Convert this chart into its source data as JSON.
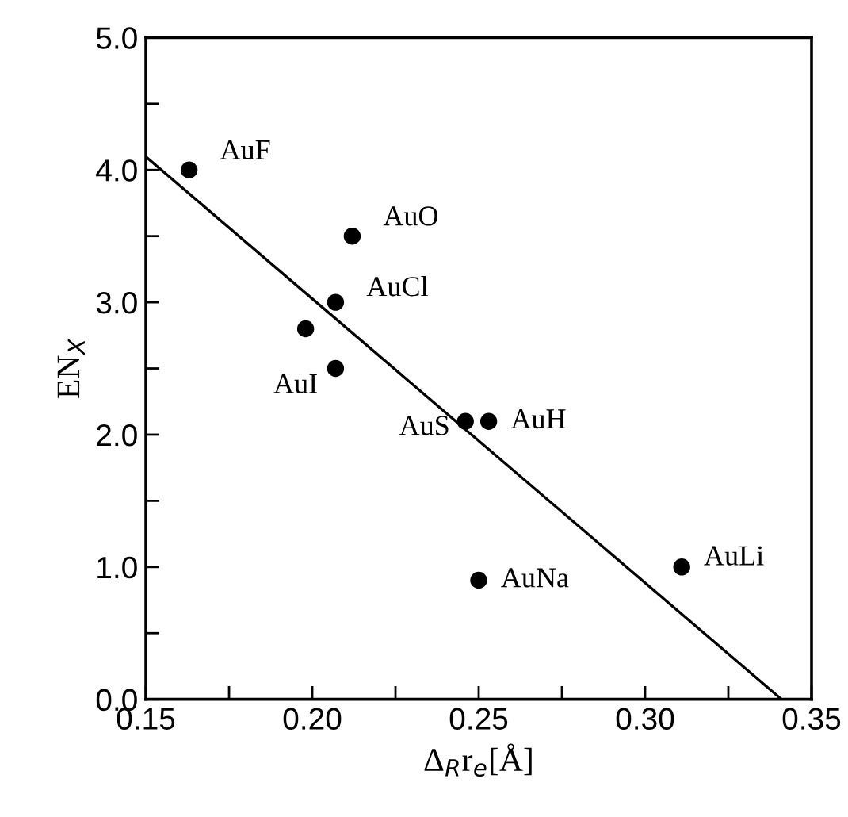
{
  "chart_data": {
    "type": "scatter",
    "xlabel": "Δ$_{R}$r$_{e}$[Å]",
    "ylabel": "EN$_{X}$",
    "x": [
      0.163,
      0.212,
      0.207,
      0.198,
      0.207,
      0.246,
      0.253,
      0.25,
      0.311
    ],
    "series": [
      {
        "color": "#000000",
        "values": [
          4.0,
          3.5,
          3.0,
          2.8,
          2.5,
          2.1,
          2.1,
          0.9,
          1.0
        ],
        "marker": "circle"
      },
      {
        "type": "line",
        "color": "#000000",
        "x": [
          0.15,
          0.341
        ],
        "values": [
          4.1,
          0.0
        ],
        "line_style": "solid",
        "marker": "none"
      }
    ],
    "annotations": [
      {
        "text": "AuF",
        "x": 0.163,
        "y": 4.0
      },
      {
        "text": "AuO",
        "x": 0.212,
        "y": 3.5
      },
      {
        "text": "AuCl",
        "x": 0.207,
        "y": 3.0
      },
      {
        "text": "AuI",
        "x": 0.207,
        "y": 2.5
      },
      {
        "text": "AuS",
        "x": 0.246,
        "y": 2.1
      },
      {
        "text": "AuH",
        "x": 0.253,
        "y": 2.1
      },
      {
        "text": "AuNa",
        "x": 0.25,
        "y": 0.9
      },
      {
        "text": "AuLi",
        "x": 0.311,
        "y": 1.0
      }
    ],
    "xlim": [
      0.15,
      0.35
    ],
    "ylim": [
      0.0,
      5.0
    ],
    "xticks": [
      {
        "value": 0.15,
        "label": "0.15"
      },
      {
        "value": 0.175,
        "label": null
      },
      {
        "value": 0.2,
        "label": "0.20"
      },
      {
        "value": 0.225,
        "label": null
      },
      {
        "value": 0.25,
        "label": "0.25"
      },
      {
        "value": 0.275,
        "label": null
      },
      {
        "value": 0.3,
        "label": "0.30"
      },
      {
        "value": 0.325,
        "label": null
      },
      {
        "value": 0.35,
        "label": "0.35"
      }
    ],
    "yticks": [
      {
        "value": 0.0,
        "label": "0.0"
      },
      {
        "value": 0.5,
        "label": null
      },
      {
        "value": 1.0,
        "label": "1.0"
      },
      {
        "value": 1.5,
        "label": null
      },
      {
        "value": 2.0,
        "label": "2.0"
      },
      {
        "value": 2.5,
        "label": null
      },
      {
        "value": 3.0,
        "label": "3.0"
      },
      {
        "value": 3.5,
        "label": null
      },
      {
        "value": 4.0,
        "label": "4.0"
      },
      {
        "value": 4.5,
        "label": null
      },
      {
        "value": 5.0,
        "label": "5.0"
      }
    ],
    "grid": false,
    "legend": false
  }
}
